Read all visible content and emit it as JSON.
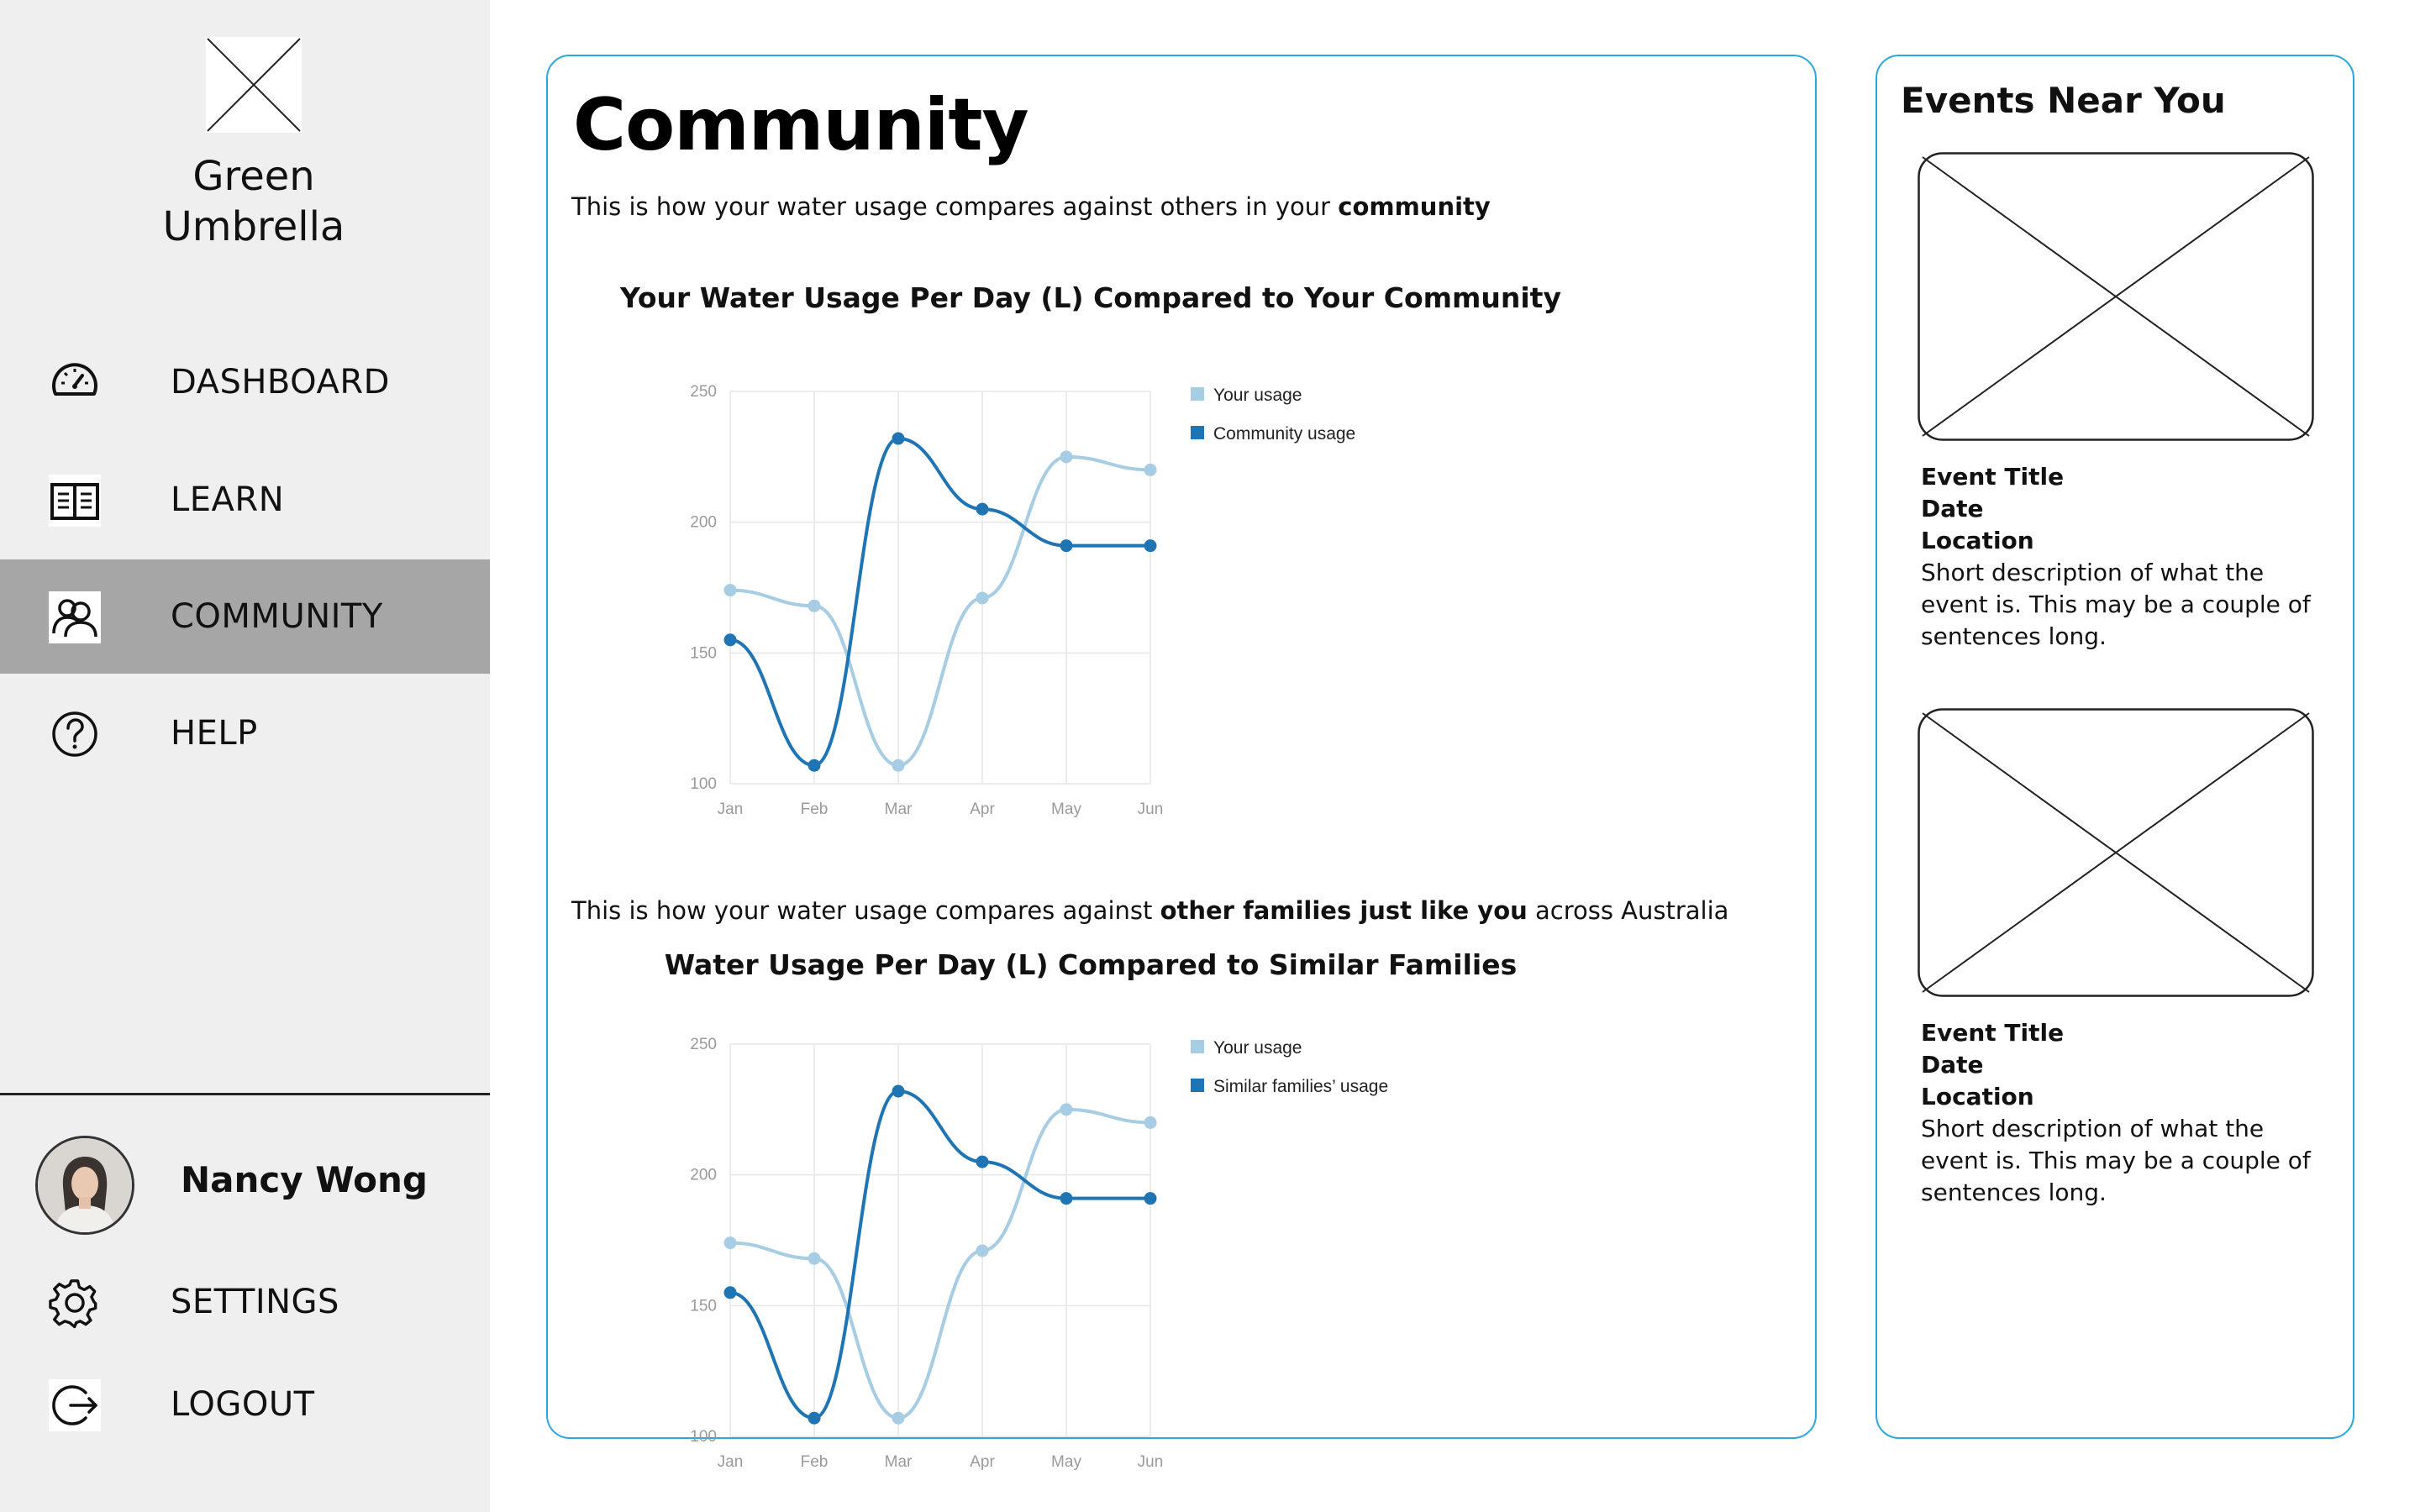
{
  "sidebar": {
    "brand": "Green Umbrella",
    "nav": [
      {
        "label": "DASHBOARD",
        "icon": "speedometer-icon"
      },
      {
        "label": "LEARN",
        "icon": "book-icon"
      },
      {
        "label": "COMMUNITY",
        "icon": "people-icon",
        "active": true
      },
      {
        "label": "HELP",
        "icon": "question-icon"
      }
    ],
    "user_name": "Nancy Wong",
    "bottom": [
      {
        "label": "SETTINGS",
        "icon": "gear-icon"
      },
      {
        "label": "LOGOUT",
        "icon": "logout-icon"
      }
    ]
  },
  "main": {
    "title": "Community",
    "intro1": {
      "pre": "This is how your water usage compares against others in your ",
      "bold": "community",
      "post": ""
    },
    "intro2": {
      "pre": "This is how your water usage compares against ",
      "bold": "other families just like you",
      "post": " across Australia"
    }
  },
  "colors": {
    "light_series": "#a6cde3",
    "dark_series": "#1f74b4",
    "panel_border": "#29a8e0",
    "active_nav": "#a6a6a6"
  },
  "chart_data": [
    {
      "type": "line",
      "title": "Your Water Usage Per Day (L) Compared to Your Community",
      "categories": [
        "Jan",
        "Feb",
        "Mar",
        "Apr",
        "May",
        "Jun"
      ],
      "ylim": [
        100,
        250
      ],
      "yticks": [
        "250",
        "200",
        "150",
        "100"
      ],
      "grid": true,
      "legend": "right",
      "series": [
        {
          "name": "Your usage",
          "values": [
            174,
            168,
            107,
            171,
            225,
            220
          ]
        },
        {
          "name": "Community usage",
          "values": [
            155,
            107,
            232,
            205,
            191,
            191
          ]
        }
      ]
    },
    {
      "type": "line",
      "title": "Water Usage Per Day (L) Compared to Similar Families",
      "categories": [
        "Jan",
        "Feb",
        "Mar",
        "Apr",
        "May",
        "Jun"
      ],
      "ylim": [
        100,
        250
      ],
      "yticks": [
        "250",
        "200",
        "150",
        "100"
      ],
      "grid": true,
      "legend": "right",
      "series": [
        {
          "name": "Your usage",
          "values": [
            174,
            168,
            107,
            171,
            225,
            220
          ]
        },
        {
          "name": "Similar families’ usage",
          "values": [
            155,
            107,
            232,
            205,
            191,
            191
          ]
        }
      ]
    }
  ],
  "events": {
    "title": "Events Near You",
    "items": [
      {
        "title": "Event Title",
        "date": "Date",
        "location": "Location",
        "description": "Short description of what the event is. This may be a couple of sentences long."
      },
      {
        "title": "Event Title",
        "date": "Date",
        "location": "Location",
        "description": "Short description of what the event is. This may be a couple of sentences long."
      }
    ]
  }
}
